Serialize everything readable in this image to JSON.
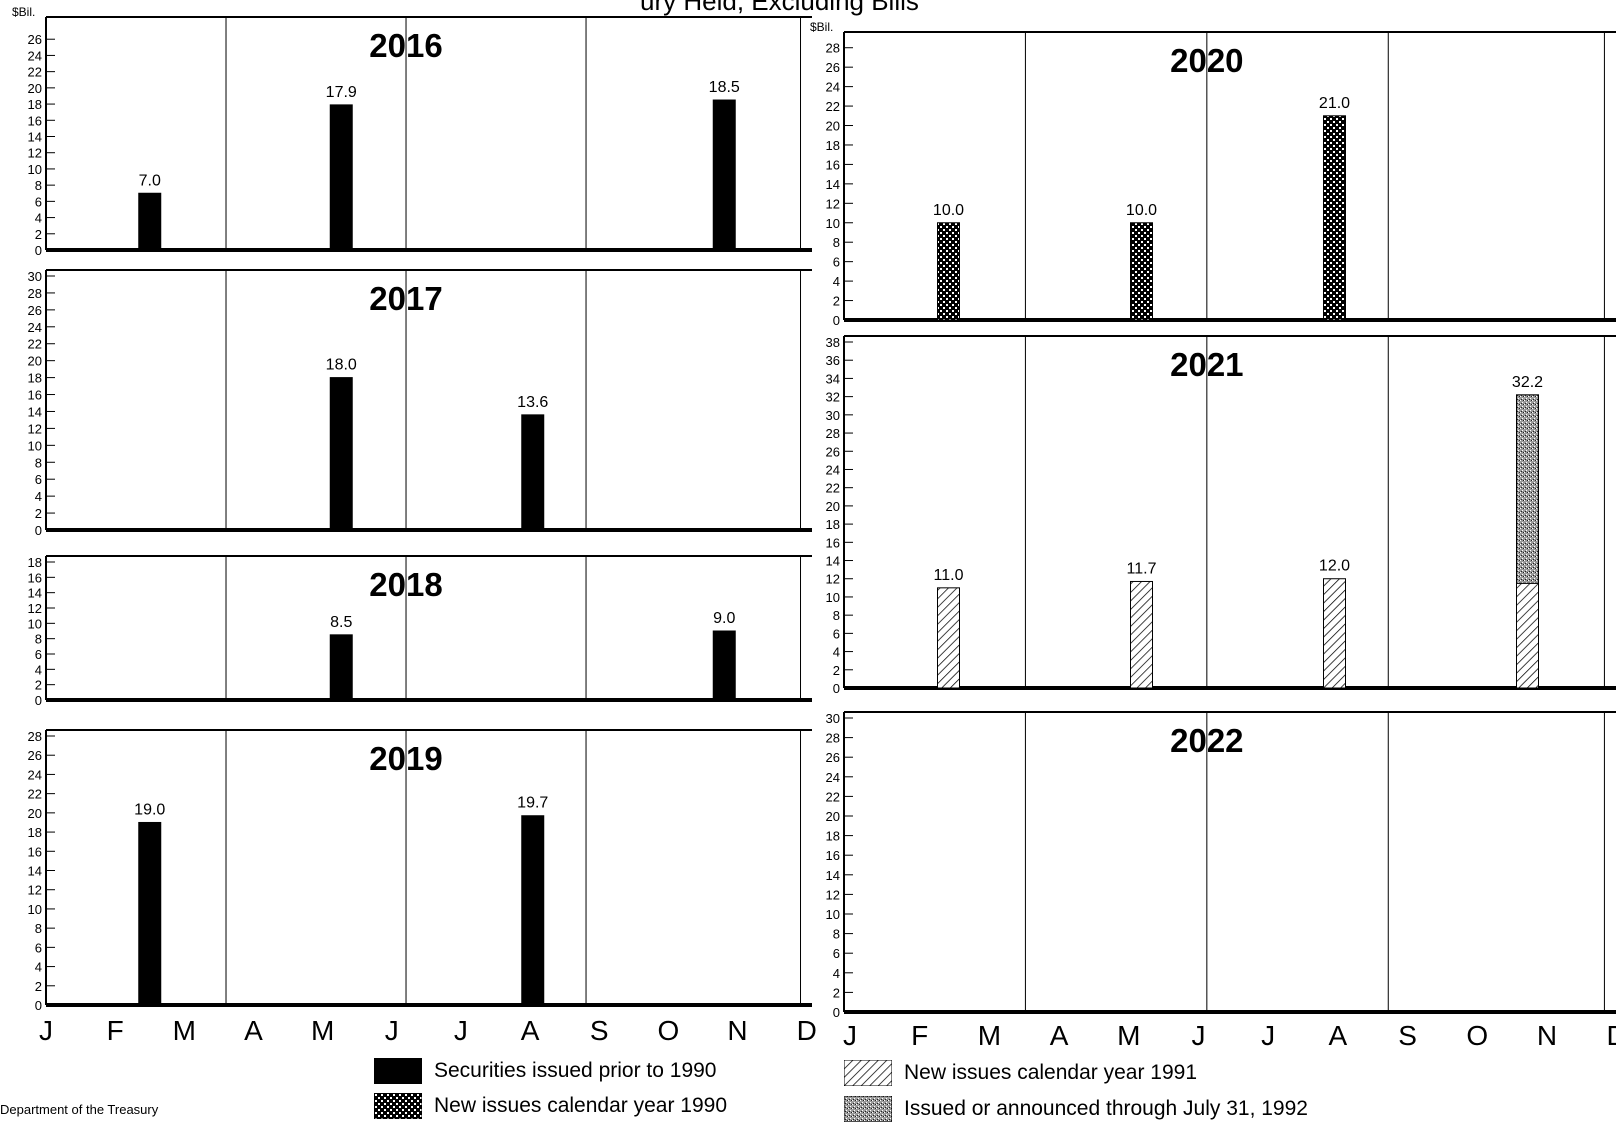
{
  "title": "ury Held, Excluding Bills",
  "footer": "Department of the Treasury",
  "months": [
    "J",
    "F",
    "M",
    "A",
    "M",
    "J",
    "J",
    "A",
    "S",
    "O",
    "N",
    "D"
  ],
  "legend": [
    {
      "key": "prior1990",
      "label": "Securities issued prior to 1990"
    },
    {
      "key": "new1990",
      "label": "New issues calendar year 1990"
    },
    {
      "key": "new1991",
      "label": "New issues calendar year 1991"
    },
    {
      "key": "announced1992",
      "label": "Issued or announced through July 31, 1992"
    }
  ],
  "chart_data": [
    {
      "type": "bar",
      "title": "2016",
      "yunit": "$Bil.",
      "ymax": 28,
      "yticks": [
        0,
        2,
        4,
        6,
        8,
        10,
        12,
        14,
        16,
        18,
        20,
        22,
        24,
        26
      ],
      "bars": [
        {
          "month": "F",
          "value": 7.0,
          "label": "7.0",
          "segments": [
            {
              "key": "prior1990",
              "value": 7.0
            }
          ]
        },
        {
          "month": "M",
          "value": 17.9,
          "label": "17.9",
          "segments": [
            {
              "key": "prior1990",
              "value": 17.9
            }
          ]
        },
        {
          "month": "N",
          "value": 18.5,
          "label": "18.5",
          "segments": [
            {
              "key": "prior1990",
              "value": 18.5
            }
          ]
        }
      ]
    },
    {
      "type": "bar",
      "title": "2017",
      "yunit": "",
      "ymax": 30,
      "yticks": [
        0,
        2,
        4,
        6,
        8,
        10,
        12,
        14,
        16,
        18,
        20,
        22,
        24,
        26,
        28,
        30
      ],
      "bars": [
        {
          "month": "M",
          "value": 18.0,
          "label": "18.0",
          "segments": [
            {
              "key": "prior1990",
              "value": 18.0
            }
          ]
        },
        {
          "month": "A",
          "value": 13.6,
          "label": "13.6",
          "segments": [
            {
              "key": "prior1990",
              "value": 13.6
            }
          ]
        }
      ]
    },
    {
      "type": "bar",
      "title": "2018",
      "yunit": "",
      "ymax": 18,
      "yticks": [
        0,
        2,
        4,
        6,
        8,
        10,
        12,
        14,
        16,
        18
      ],
      "bars": [
        {
          "month": "M",
          "value": 8.5,
          "label": "8.5",
          "segments": [
            {
              "key": "prior1990",
              "value": 8.5
            }
          ]
        },
        {
          "month": "N",
          "value": 9.0,
          "label": "9.0",
          "segments": [
            {
              "key": "prior1990",
              "value": 9.0
            }
          ]
        }
      ]
    },
    {
      "type": "bar",
      "title": "2019",
      "yunit": "",
      "ymax": 28,
      "yticks": [
        0,
        2,
        4,
        6,
        8,
        10,
        12,
        14,
        16,
        18,
        20,
        22,
        24,
        26,
        28
      ],
      "bars": [
        {
          "month": "F",
          "value": 19.0,
          "label": "19.0",
          "segments": [
            {
              "key": "prior1990",
              "value": 19.0
            }
          ]
        },
        {
          "month": "A",
          "value": 19.7,
          "label": "19.7",
          "segments": [
            {
              "key": "prior1990",
              "value": 19.7
            }
          ]
        }
      ]
    },
    {
      "type": "bar",
      "title": "2020",
      "yunit": "$Bil.",
      "ymax": 29,
      "yticks": [
        0,
        2,
        4,
        6,
        8,
        10,
        12,
        14,
        16,
        18,
        20,
        22,
        24,
        26,
        28
      ],
      "bars": [
        {
          "month": "F",
          "value": 10.0,
          "label": "10.0",
          "segments": [
            {
              "key": "new1990",
              "value": 10.0
            }
          ]
        },
        {
          "month": "M",
          "value": 10.0,
          "label": "10.0",
          "segments": [
            {
              "key": "new1990",
              "value": 10.0
            }
          ]
        },
        {
          "month": "A",
          "value": 21.0,
          "label": "21.0",
          "segments": [
            {
              "key": "new1990",
              "value": 21.0
            }
          ]
        }
      ]
    },
    {
      "type": "bar",
      "title": "2021",
      "yunit": "",
      "ymax": 38,
      "yticks": [
        0,
        2,
        4,
        6,
        8,
        10,
        12,
        14,
        16,
        18,
        20,
        22,
        24,
        26,
        28,
        30,
        32,
        34,
        36,
        38
      ],
      "bars": [
        {
          "month": "F",
          "value": 11.0,
          "label": "11.0",
          "segments": [
            {
              "key": "new1991",
              "value": 11.0
            }
          ]
        },
        {
          "month": "M",
          "value": 11.7,
          "label": "11.7",
          "segments": [
            {
              "key": "new1991",
              "value": 11.7
            }
          ]
        },
        {
          "month": "A",
          "value": 12.0,
          "label": "12.0",
          "segments": [
            {
              "key": "new1991",
              "value": 12.0
            }
          ]
        },
        {
          "month": "N",
          "value": 32.2,
          "label": "32.2",
          "segments": [
            {
              "key": "new1991",
              "value": 11.5
            },
            {
              "key": "announced1992",
              "value": 20.7
            }
          ]
        }
      ]
    },
    {
      "type": "bar",
      "title": "2022",
      "yunit": "",
      "ymax": 30,
      "yticks": [
        0,
        2,
        4,
        6,
        8,
        10,
        12,
        14,
        16,
        18,
        20,
        22,
        24,
        26,
        28,
        30
      ],
      "bars": []
    }
  ]
}
